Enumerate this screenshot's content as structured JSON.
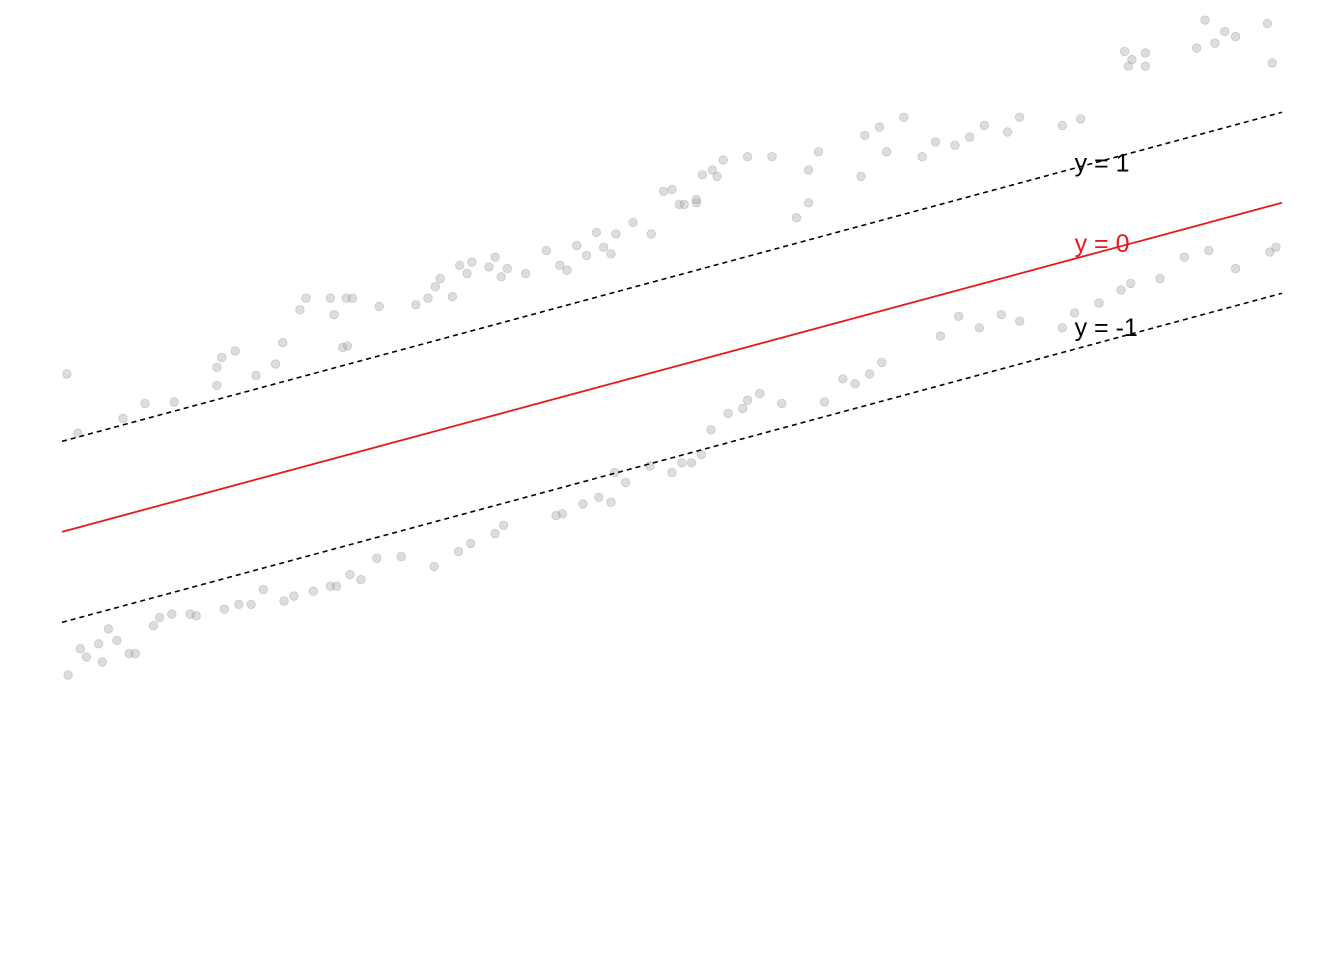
{
  "chart_data": {
    "type": "scatter",
    "title": "",
    "xlabel": "",
    "ylabel": "",
    "xlim": [
      0,
      10
    ],
    "ylim": [
      -2,
      3.5
    ],
    "grid": false,
    "axes_visible": false,
    "colors": {
      "points": "#9e9e9e",
      "center_line": "#e41a1c",
      "margin_lines": "#000000",
      "center_label": "#e41a1c",
      "margin_label": "#000000"
    },
    "lines": [
      {
        "label": "y = 1",
        "style": "dashed",
        "x": [
          0,
          10
        ],
        "y": [
          1.0,
          3.0
        ]
      },
      {
        "label": "y = 0",
        "style": "solid",
        "x": [
          0,
          10
        ],
        "y": [
          0.45,
          2.45
        ]
      },
      {
        "label": "y = -1",
        "style": "dashed",
        "x": [
          0,
          10
        ],
        "y": [
          -0.1,
          1.9
        ]
      }
    ],
    "label_positions": [
      {
        "label": "y = 1",
        "x": 8.3,
        "y": 2.64
      },
      {
        "label": "y = 0",
        "x": 8.3,
        "y": 2.15
      },
      {
        "label": "y = -1",
        "x": 8.3,
        "y": 1.64
      }
    ],
    "points": [
      [
        0.04,
        1.41
      ],
      [
        0.13,
        1.05
      ],
      [
        0.5,
        1.14
      ],
      [
        0.68,
        1.23
      ],
      [
        0.92,
        1.24
      ],
      [
        1.27,
        1.34
      ],
      [
        1.27,
        1.45
      ],
      [
        1.31,
        1.51
      ],
      [
        1.42,
        1.55
      ],
      [
        1.59,
        1.4
      ],
      [
        1.75,
        1.47
      ],
      [
        1.81,
        1.6
      ],
      [
        1.95,
        1.8
      ],
      [
        2.0,
        1.87
      ],
      [
        2.2,
        1.87
      ],
      [
        2.23,
        1.77
      ],
      [
        2.33,
        1.87
      ],
      [
        2.38,
        1.87
      ],
      [
        2.3,
        1.57
      ],
      [
        2.34,
        1.58
      ],
      [
        2.6,
        1.82
      ],
      [
        2.9,
        1.83
      ],
      [
        3.0,
        1.87
      ],
      [
        3.06,
        1.94
      ],
      [
        3.1,
        1.99
      ],
      [
        3.2,
        1.88
      ],
      [
        3.26,
        2.07
      ],
      [
        3.32,
        2.02
      ],
      [
        3.36,
        2.09
      ],
      [
        3.5,
        2.06
      ],
      [
        3.55,
        2.12
      ],
      [
        3.6,
        2.0
      ],
      [
        3.65,
        2.05
      ],
      [
        3.8,
        2.02
      ],
      [
        3.97,
        2.16
      ],
      [
        4.08,
        2.07
      ],
      [
        4.14,
        2.04
      ],
      [
        4.22,
        2.19
      ],
      [
        4.3,
        2.13
      ],
      [
        4.38,
        2.27
      ],
      [
        4.44,
        2.18
      ],
      [
        4.5,
        2.14
      ],
      [
        4.54,
        2.26
      ],
      [
        4.68,
        2.33
      ],
      [
        4.83,
        2.26
      ],
      [
        4.93,
        2.52
      ],
      [
        5.0,
        2.53
      ],
      [
        5.06,
        2.44
      ],
      [
        5.1,
        2.44
      ],
      [
        5.2,
        2.45
      ],
      [
        5.2,
        2.47
      ],
      [
        5.25,
        2.62
      ],
      [
        5.33,
        2.65
      ],
      [
        5.37,
        2.61
      ],
      [
        5.42,
        2.71
      ],
      [
        5.62,
        2.73
      ],
      [
        5.82,
        2.73
      ],
      [
        6.12,
        2.65
      ],
      [
        6.2,
        2.76
      ],
      [
        6.02,
        2.36
      ],
      [
        6.12,
        2.45
      ],
      [
        6.55,
        2.61
      ],
      [
        6.58,
        2.86
      ],
      [
        6.7,
        2.91
      ],
      [
        6.76,
        2.76
      ],
      [
        6.9,
        2.97
      ],
      [
        7.05,
        2.73
      ],
      [
        7.16,
        2.82
      ],
      [
        7.32,
        2.8
      ],
      [
        7.44,
        2.85
      ],
      [
        7.56,
        2.92
      ],
      [
        7.75,
        2.88
      ],
      [
        7.85,
        2.97
      ],
      [
        8.2,
        2.92
      ],
      [
        8.35,
        2.96
      ],
      [
        8.71,
        3.37
      ],
      [
        8.74,
        3.28
      ],
      [
        8.77,
        3.32
      ],
      [
        8.88,
        3.28
      ],
      [
        8.88,
        3.36
      ],
      [
        9.3,
        3.39
      ],
      [
        9.37,
        3.56
      ],
      [
        9.45,
        3.42
      ],
      [
        9.53,
        3.49
      ],
      [
        9.62,
        3.46
      ],
      [
        9.88,
        3.54
      ],
      [
        9.92,
        3.3
      ],
      [
        0.05,
        -0.42
      ],
      [
        0.15,
        -0.26
      ],
      [
        0.2,
        -0.31
      ],
      [
        0.3,
        -0.23
      ],
      [
        0.33,
        -0.34
      ],
      [
        0.38,
        -0.14
      ],
      [
        0.45,
        -0.21
      ],
      [
        0.55,
        -0.29
      ],
      [
        0.6,
        -0.29
      ],
      [
        0.75,
        -0.12
      ],
      [
        0.8,
        -0.07
      ],
      [
        0.9,
        -0.05
      ],
      [
        1.05,
        -0.05
      ],
      [
        1.1,
        -0.06
      ],
      [
        1.33,
        -0.02
      ],
      [
        1.45,
        0.01
      ],
      [
        1.55,
        0.01
      ],
      [
        1.65,
        0.1
      ],
      [
        1.82,
        0.03
      ],
      [
        1.9,
        0.06
      ],
      [
        2.06,
        0.09
      ],
      [
        2.2,
        0.12
      ],
      [
        2.25,
        0.12
      ],
      [
        2.36,
        0.19
      ],
      [
        2.45,
        0.16
      ],
      [
        2.58,
        0.29
      ],
      [
        2.78,
        0.3
      ],
      [
        3.05,
        0.24
      ],
      [
        3.25,
        0.33
      ],
      [
        3.35,
        0.38
      ],
      [
        3.55,
        0.44
      ],
      [
        3.62,
        0.49
      ],
      [
        4.05,
        0.55
      ],
      [
        4.1,
        0.56
      ],
      [
        4.27,
        0.62
      ],
      [
        4.4,
        0.66
      ],
      [
        4.5,
        0.63
      ],
      [
        4.53,
        0.81
      ],
      [
        4.62,
        0.75
      ],
      [
        4.82,
        0.85
      ],
      [
        5.0,
        0.81
      ],
      [
        5.08,
        0.87
      ],
      [
        5.16,
        0.87
      ],
      [
        5.24,
        0.92
      ],
      [
        5.32,
        1.07
      ],
      [
        5.46,
        1.17
      ],
      [
        5.58,
        1.2
      ],
      [
        5.62,
        1.25
      ],
      [
        5.72,
        1.29
      ],
      [
        5.9,
        1.23
      ],
      [
        6.25,
        1.24
      ],
      [
        6.4,
        1.38
      ],
      [
        6.5,
        1.35
      ],
      [
        6.62,
        1.41
      ],
      [
        6.72,
        1.48
      ],
      [
        7.2,
        1.64
      ],
      [
        7.35,
        1.76
      ],
      [
        7.52,
        1.69
      ],
      [
        7.7,
        1.77
      ],
      [
        7.85,
        1.73
      ],
      [
        8.2,
        1.69
      ],
      [
        8.3,
        1.78
      ],
      [
        8.5,
        1.84
      ],
      [
        8.68,
        1.92
      ],
      [
        8.76,
        1.96
      ],
      [
        9.0,
        1.99
      ],
      [
        9.2,
        2.12
      ],
      [
        9.4,
        2.16
      ],
      [
        9.62,
        2.05
      ],
      [
        9.9,
        2.15
      ],
      [
        9.95,
        2.18
      ]
    ]
  }
}
